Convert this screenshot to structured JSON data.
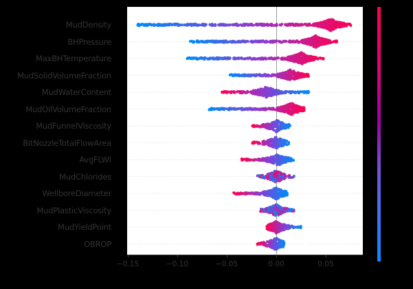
{
  "chart_data": {
    "type": "scatter",
    "subtype": "shap-beeswarm-summary",
    "title": "",
    "xlabel": "",
    "ylabel": "",
    "xlim": [
      -0.152,
      0.087
    ],
    "xticks": [
      -0.15,
      -0.1,
      -0.05,
      0.0,
      0.05
    ],
    "xtick_labels": [
      "−0.15",
      "−0.10",
      "−0.05",
      "0.00",
      "0.05"
    ],
    "grid": "horizontal dotted per feature",
    "colorbar": {
      "low_color": "#008bfb",
      "high_color": "#ff0052",
      "labels_visible": false
    },
    "features": [
      {
        "name": "MudDensity",
        "min": -0.14,
        "max": 0.078,
        "peak": 0.055,
        "low_side_color": "blue",
        "high_side_color": "red"
      },
      {
        "name": "BHPressure",
        "min": -0.087,
        "max": 0.062,
        "peak": 0.04,
        "low_side_color": "blue",
        "high_side_color": "red"
      },
      {
        "name": "MaxBHTemperature",
        "min": -0.09,
        "max": 0.048,
        "peak": 0.025,
        "low_side_color": "blue",
        "high_side_color": "red"
      },
      {
        "name": "MudSolidVolumeFraction",
        "min": -0.047,
        "max": 0.033,
        "peak": 0.015,
        "low_side_color": "blue",
        "high_side_color": "red"
      },
      {
        "name": "MudWaterContent",
        "min": -0.055,
        "max": 0.033,
        "peak": -0.01,
        "low_side_color": "red",
        "high_side_color": "blue"
      },
      {
        "name": "MudOilVolumeFraction",
        "min": -0.068,
        "max": 0.028,
        "peak": 0.015,
        "low_side_color": "blue",
        "high_side_color": "red"
      },
      {
        "name": "MudFunnelViscosity",
        "min": -0.024,
        "max": 0.014,
        "peak": 0.0,
        "low_side_color": "red",
        "high_side_color": "blue"
      },
      {
        "name": "BitNozzleTotalFlowArea",
        "min": -0.024,
        "max": 0.013,
        "peak": 0.0,
        "low_side_color": "red",
        "high_side_color": "blue"
      },
      {
        "name": "AvgFLWI",
        "min": -0.035,
        "max": 0.018,
        "peak": 0.002,
        "low_side_color": "red",
        "high_side_color": "blue"
      },
      {
        "name": "MudChlorides",
        "min": -0.019,
        "max": 0.018,
        "peak": 0.0,
        "low_side_color": "mixed",
        "high_side_color": "mixed"
      },
      {
        "name": "WellboreDiameter",
        "min": -0.043,
        "max": 0.011,
        "peak": 0.0,
        "low_side_color": "red",
        "high_side_color": "blue"
      },
      {
        "name": "MudPlasticViscosity",
        "min": -0.016,
        "max": 0.018,
        "peak": 0.0,
        "low_side_color": "mixed",
        "high_side_color": "red"
      },
      {
        "name": "MudYieldPoint",
        "min": -0.01,
        "max": 0.025,
        "peak": 0.0,
        "low_side_color": "red",
        "high_side_color": "blue"
      },
      {
        "name": "OBROP",
        "min": -0.019,
        "max": 0.009,
        "peak": 0.0,
        "low_side_color": "red",
        "high_side_color": "blue"
      }
    ]
  },
  "axis": {
    "ticks": [
      "−0.15",
      "−0.10",
      "−0.05",
      "0.00",
      "0.05"
    ]
  }
}
